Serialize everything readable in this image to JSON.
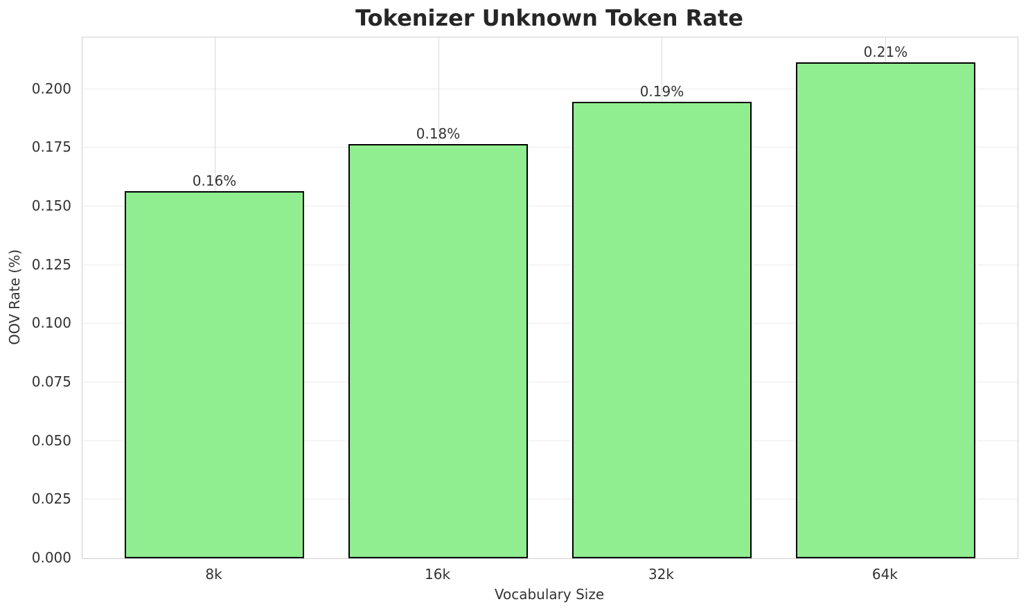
{
  "chart_data": {
    "type": "bar",
    "title": "Tokenizer Unknown Token Rate",
    "xlabel": "Vocabulary Size",
    "ylabel": "OOV Rate (%)",
    "categories": [
      "8k",
      "16k",
      "32k",
      "64k"
    ],
    "values": [
      0.1566,
      0.1767,
      0.1947,
      0.2115
    ],
    "bar_labels": [
      "0.16%",
      "0.18%",
      "0.19%",
      "0.21%"
    ],
    "ylim": [
      0,
      0.2221
    ],
    "yticks": [
      0,
      0.025,
      0.05,
      0.075,
      0.1,
      0.125,
      0.15,
      0.175,
      0.2
    ],
    "ytick_labels": [
      "0.000",
      "0.025",
      "0.050",
      "0.075",
      "0.100",
      "0.125",
      "0.150",
      "0.175",
      "0.200"
    ],
    "grid": true,
    "legend_position": "none",
    "colors": {
      "bar_fill": "#90EE90",
      "bar_edge": "#000000",
      "grid_horizontal": "#ebebeb",
      "grid_vertical": "#d9d9d9",
      "spine": "#cfcfcf",
      "tick_text": "#333333",
      "title_text": "#262626"
    }
  }
}
